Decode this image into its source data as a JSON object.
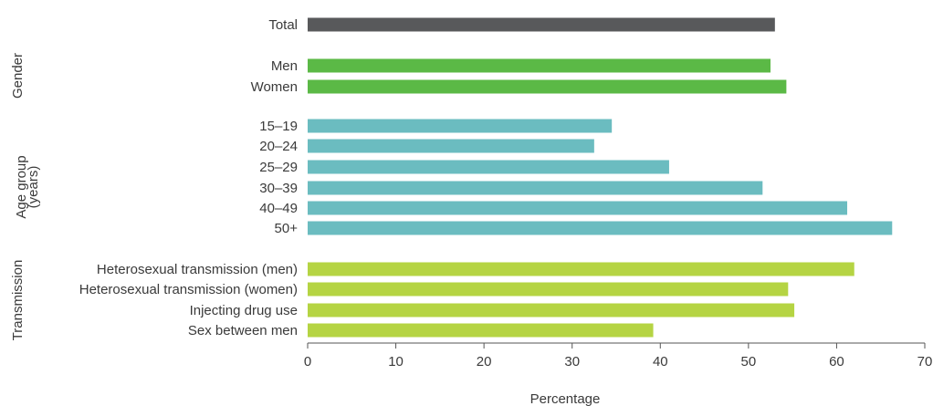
{
  "chart_data": {
    "type": "bar",
    "orientation": "horizontal",
    "title": "",
    "xlabel": "Percentage",
    "ylabel": "",
    "xlim": [
      0,
      70
    ],
    "xticks": [
      "0",
      "10",
      "20",
      "30",
      "40",
      "50",
      "60",
      "70"
    ],
    "grid": false,
    "legend": "none",
    "groups": [
      {
        "label": "",
        "color": "#58595b",
        "categories": [
          "Total"
        ],
        "values": [
          53
        ]
      },
      {
        "label": "Gender",
        "color": "#5bb946",
        "categories": [
          "Men",
          "Women"
        ],
        "values": [
          52.5,
          54.3
        ]
      },
      {
        "label": "Age group (years)",
        "label_lines": [
          "Age group",
          "(years)"
        ],
        "color": "#6bbcc0",
        "categories": [
          "15–19",
          "20–24",
          "25–29",
          "30–39",
          "40–49",
          "50+"
        ],
        "values": [
          34.5,
          32.5,
          41,
          51.6,
          61.2,
          66.3
        ]
      },
      {
        "label": "Transmission",
        "color": "#b5d443",
        "categories": [
          "Heterosexual transmission (men)",
          "Heterosexual transmission (women)",
          "Injecting drug use",
          "Sex between men"
        ],
        "values": [
          62,
          54.5,
          55.2,
          39.2
        ]
      }
    ]
  }
}
